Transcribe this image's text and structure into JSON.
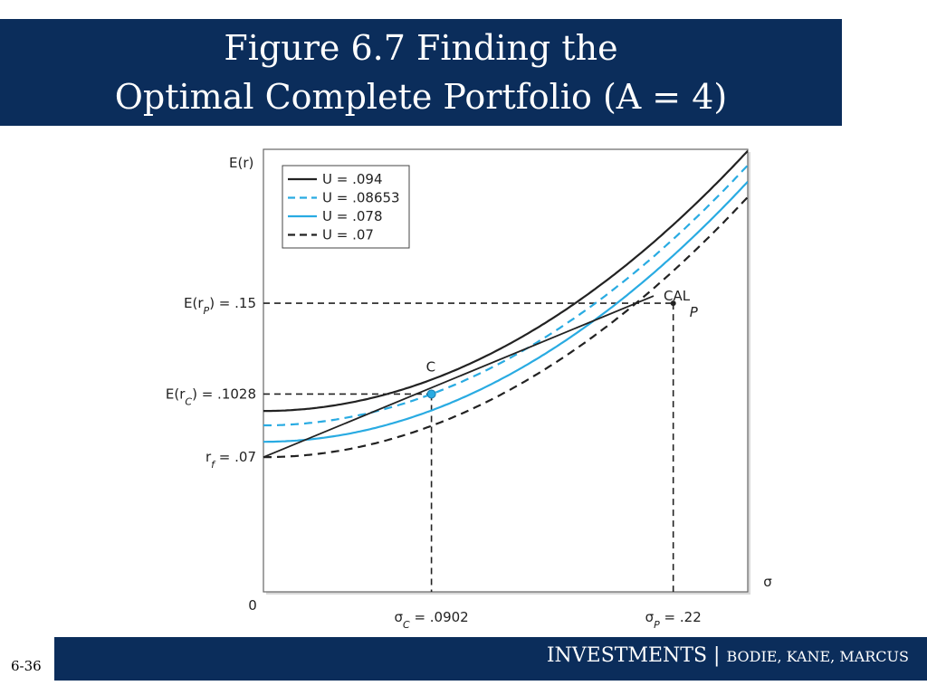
{
  "slide": {
    "title_line1": "Figure 6.7 Finding the",
    "title_line2": "Optimal Complete Portfolio (A = 4)",
    "footer_main": "INVESTMENTS",
    "footer_sep": " | ",
    "footer_sub": "BODIE, KANE, MARCUS",
    "slide_number": "6-36",
    "brand_color": "#0b2d5b"
  },
  "chart_data": {
    "type": "line",
    "title": "",
    "xlabel": "σ",
    "ylabel": "E(r)",
    "origin_label": "0",
    "xlim": [
      0,
      0.26
    ],
    "ylim": [
      0,
      0.23
    ],
    "grid": false,
    "legend_position": "top-left",
    "risk_aversion_A": 4,
    "series": [
      {
        "name": "U = .094",
        "utility": 0.094,
        "color": "#222222",
        "dash": "solid"
      },
      {
        "name": "U = .08653",
        "utility": 0.08653,
        "color": "#29abe2",
        "dash": "dashed"
      },
      {
        "name": "U = .078",
        "utility": 0.078,
        "color": "#29abe2",
        "dash": "solid"
      },
      {
        "name": "U = .07",
        "utility": 0.07,
        "color": "#222222",
        "dash": "dashed"
      }
    ],
    "cal": {
      "label": "CAL",
      "x": [
        0,
        0.26
      ],
      "y": [
        0.07,
        0.174
      ]
    },
    "points": [
      {
        "label": "C",
        "x": 0.0902,
        "y": 0.1028
      },
      {
        "label": "P",
        "x": 0.22,
        "y": 0.15
      }
    ],
    "y_ticks": [
      {
        "value": 0.15,
        "label": "E(r_P) = .15"
      },
      {
        "value": 0.1028,
        "label": "E(r_C) = .1028"
      },
      {
        "value": 0.07,
        "label": "r_f = .07"
      }
    ],
    "x_ticks": [
      {
        "value": 0.0902,
        "label": "σ_C = .0902"
      },
      {
        "value": 0.22,
        "label": "σ_P = .22"
      }
    ]
  }
}
